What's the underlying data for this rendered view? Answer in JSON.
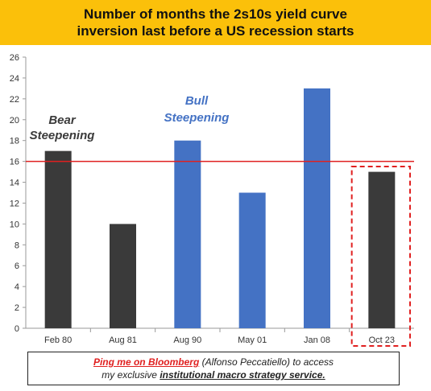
{
  "title": {
    "line1": "Number of months the 2s10s yield curve",
    "line2": "inversion last before a US recession starts"
  },
  "chart_data": {
    "type": "bar",
    "categories": [
      "Feb 80",
      "Aug 81",
      "Aug 90",
      "May 01",
      "Jan 08",
      "Oct 23"
    ],
    "values": [
      17,
      10,
      18,
      13,
      23,
      15
    ],
    "bar_colors": [
      "#3a3a3a",
      "#3a3a3a",
      "#4472c4",
      "#4472c4",
      "#4472c4",
      "#3a3a3a"
    ],
    "ylim": [
      0,
      26
    ],
    "yticks": [
      0,
      2,
      4,
      6,
      8,
      10,
      12,
      14,
      16,
      18,
      20,
      22,
      24,
      26
    ],
    "reference_line": {
      "value": 16,
      "color": "#e02020"
    },
    "highlight_category": "Oct 23",
    "highlight_color": "#e02020",
    "annotations": [
      {
        "line1": "Bear",
        "line2": "Steepening",
        "color": "#3a3a3a"
      },
      {
        "line1": "Bull",
        "line2": "Steepening",
        "color": "#4472c4"
      }
    ],
    "grid": false
  },
  "footer": {
    "link_text": "Ping me on Bloomberg",
    "text1": " (Alfonso Peccatiello) to access",
    "text2": "my exclusive ",
    "service_text": "institutional macro strategy service."
  }
}
